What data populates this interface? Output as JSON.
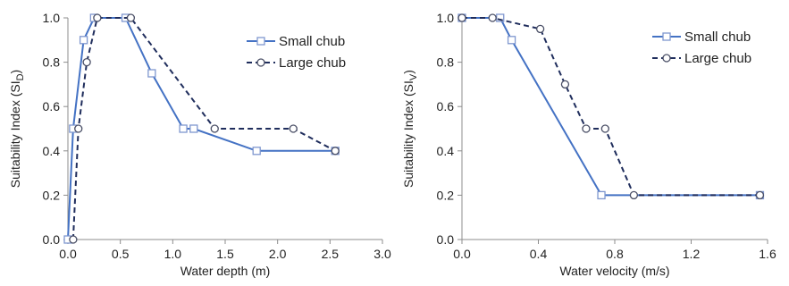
{
  "chart_data": [
    {
      "type": "line",
      "xlabel": "Water depth (m)",
      "ylabel_main": "Suitability Index (SI",
      "ylabel_sub": "D",
      "ylabel_close": ")",
      "xlim": [
        0,
        3.0
      ],
      "ylim": [
        0,
        1.0
      ],
      "xticks": [
        "0.0",
        "0.5",
        "1.0",
        "1.5",
        "2.0",
        "2.5",
        "3.0"
      ],
      "xtick_values": [
        0,
        0.5,
        1.0,
        1.5,
        2.0,
        2.5,
        3.0
      ],
      "yticks": [
        "0.0",
        "0.2",
        "0.4",
        "0.6",
        "0.8",
        "1.0"
      ],
      "ytick_values": [
        0,
        0.2,
        0.4,
        0.6,
        0.8,
        1.0
      ],
      "legend_position": "top-right",
      "series": [
        {
          "name": "Small chub",
          "color": "#4472c4",
          "style": "solid",
          "marker": "square",
          "x": [
            0.0,
            0.05,
            0.15,
            0.25,
            0.55,
            0.8,
            1.1,
            1.2,
            1.8,
            2.55
          ],
          "y": [
            0.0,
            0.5,
            0.9,
            1.0,
            1.0,
            0.75,
            0.5,
            0.5,
            0.4,
            0.4
          ]
        },
        {
          "name": "Large chub",
          "color": "#1f2d5c",
          "style": "dashed",
          "marker": "circle",
          "x": [
            0.05,
            0.1,
            0.18,
            0.28,
            0.6,
            1.4,
            2.15,
            2.55
          ],
          "y": [
            0.0,
            0.5,
            0.8,
            1.0,
            1.0,
            0.5,
            0.5,
            0.4
          ]
        }
      ]
    },
    {
      "type": "line",
      "xlabel": "Water velocity (m/s)",
      "ylabel_main": "Suitability Index (SI",
      "ylabel_sub": "V",
      "ylabel_close": ")",
      "xlim": [
        0,
        1.6
      ],
      "ylim": [
        0,
        1.0
      ],
      "xticks": [
        "0.0",
        "0.4",
        "0.8",
        "1.2",
        "1.6"
      ],
      "xtick_values": [
        0,
        0.4,
        0.8,
        1.2,
        1.6
      ],
      "yticks": [
        "0.0",
        "0.2",
        "0.4",
        "0.6",
        "0.8",
        "1.0"
      ],
      "ytick_values": [
        0,
        0.2,
        0.4,
        0.6,
        0.8,
        1.0
      ],
      "legend_position": "top-right",
      "series": [
        {
          "name": "Small chub",
          "color": "#4472c4",
          "style": "solid",
          "marker": "square",
          "x": [
            0.0,
            0.2,
            0.26,
            0.73,
            1.56
          ],
          "y": [
            1.0,
            1.0,
            0.9,
            0.2,
            0.2
          ]
        },
        {
          "name": "Large chub",
          "color": "#1f2d5c",
          "style": "dashed",
          "marker": "circle",
          "x": [
            0.0,
            0.16,
            0.41,
            0.54,
            0.65,
            0.75,
            0.9,
            1.56
          ],
          "y": [
            1.0,
            1.0,
            0.95,
            0.7,
            0.5,
            0.5,
            0.2,
            0.2
          ]
        }
      ]
    }
  ]
}
